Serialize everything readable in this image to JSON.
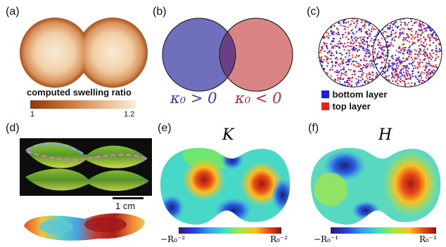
{
  "panels": {
    "a": {
      "label": "(a)",
      "colorbar_label": "computed swelling ratio",
      "tick_min": "1",
      "tick_max": "1.2",
      "colors": {
        "dark": "#a6521e",
        "light": "#f8ecd8"
      }
    },
    "b": {
      "label": "(b)",
      "left_text": "κ₀ > 0",
      "right_text": "κ₀ < 0",
      "colors": {
        "left": "#6f6fbe",
        "right": "#d8797c",
        "left_text": "#3a3aa0",
        "right_text": "#b0303a"
      }
    },
    "c": {
      "label": "(c)",
      "legend": [
        {
          "text": "bottom layer",
          "color": "#1a1aff"
        },
        {
          "text": "top layer",
          "color": "#ff1a1a"
        }
      ]
    },
    "d": {
      "label": "(d)",
      "scalebar_label": "1 cm"
    },
    "e": {
      "label": "(e)",
      "title": "K",
      "tick_min": "−R₀⁻²",
      "tick_max": "R₀⁻²"
    },
    "f": {
      "label": "(f)",
      "title": "H",
      "tick_min": "−R₀⁻¹",
      "tick_max": "R₀⁻¹"
    }
  }
}
